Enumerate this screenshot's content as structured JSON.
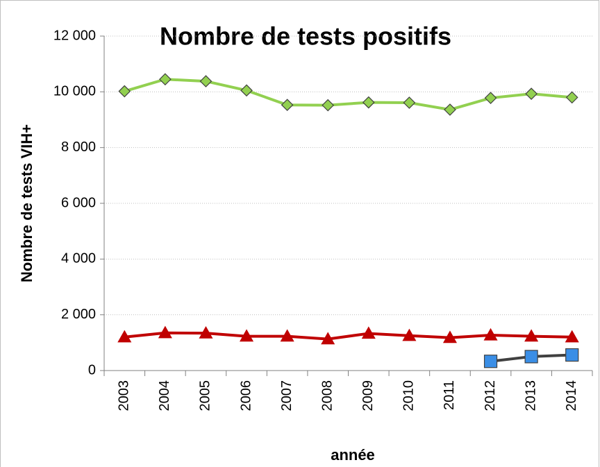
{
  "chart_data": {
    "type": "line",
    "title": "Nombre de tests positifs",
    "x_label": "année",
    "y_label": "Nombre de tests VIH+",
    "categories": [
      "2003",
      "2004",
      "2005",
      "2006",
      "2007",
      "2008",
      "2009",
      "2010",
      "2011",
      "2012",
      "2013",
      "2014"
    ],
    "series": [
      {
        "color": "#92d050",
        "line_color": "#92d050",
        "marker": "diamond",
        "values": [
          10020,
          10450,
          10380,
          10050,
          9530,
          9520,
          9620,
          9610,
          9360,
          9780,
          9930,
          9800
        ]
      },
      {
        "color": "#c00000",
        "line_color": "#c00000",
        "marker": "triangle",
        "values": [
          1200,
          1350,
          1340,
          1230,
          1230,
          1130,
          1330,
          1250,
          1180,
          1270,
          1230,
          1200
        ]
      },
      {
        "color": "#3a8ee6",
        "line_color": "#404040",
        "marker": "square",
        "values": [
          null,
          null,
          null,
          null,
          null,
          null,
          null,
          null,
          null,
          330,
          500,
          560
        ]
      }
    ],
    "ylim": [
      0,
      12000
    ],
    "yticks": [
      0,
      {
        "value": 2000,
        "label": "2 000"
      },
      {
        "value": 4000,
        "label": "4 000"
      },
      {
        "value": 6000,
        "label": "6 000"
      },
      {
        "value": 8000,
        "label": "8 000"
      },
      {
        "value": 10000,
        "label": "10 000"
      },
      {
        "value": 12000,
        "label": "12 000"
      }
    ],
    "grid": true
  }
}
